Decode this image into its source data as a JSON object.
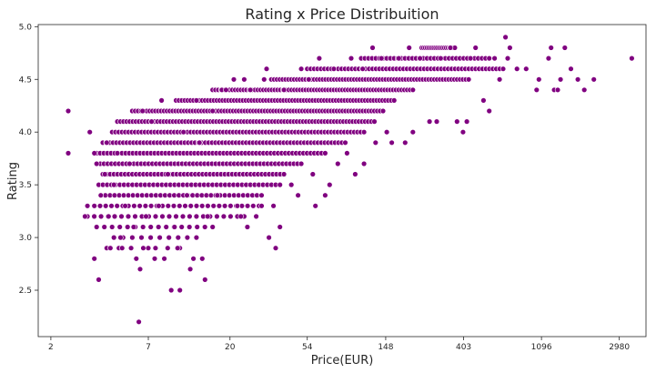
{
  "chart_data": {
    "type": "scatter",
    "title": "Rating x Price Distribuition",
    "xlabel": "Price(EUR)",
    "ylabel": "Rating",
    "x_scale": "log",
    "x_ticks": [
      2,
      7,
      20,
      54,
      148,
      403,
      1096,
      2980
    ],
    "y_ticks": [
      "2.5",
      "3.0",
      "3.5",
      "4.0",
      "4.5",
      "5.0"
    ],
    "xlim": [
      1.7,
      4200
    ],
    "ylim": [
      2.06,
      5.02
    ],
    "grid": false,
    "marker_color": "#800080",
    "series": [
      {
        "points": [
          {
            "x": 2.5,
            "y": 4.2
          },
          {
            "x": 2.5,
            "y": 3.8
          },
          {
            "x": 3.3,
            "y": 4.0
          },
          {
            "x": 3.2,
            "y": 3.3
          },
          {
            "x": 3.1,
            "y": 3.2
          },
          {
            "x": 3.5,
            "y": 3.8
          },
          {
            "x": 3.5,
            "y": 2.8
          },
          {
            "x": 3.7,
            "y": 2.6
          },
          {
            "x": 3.6,
            "y": 3.7
          },
          {
            "x": 3.8,
            "y": 3.4
          },
          {
            "x": 4.0,
            "y": 3.6
          },
          {
            "x": 4.1,
            "y": 3.9
          },
          {
            "x": 4.2,
            "y": 3.2
          },
          {
            "x": 4.3,
            "y": 2.9
          },
          {
            "x": 4.5,
            "y": 3.5
          },
          {
            "x": 4.7,
            "y": 3.8
          },
          {
            "x": 4.9,
            "y": 3.0
          },
          {
            "x": 5.0,
            "y": 2.9
          },
          {
            "x": 5.2,
            "y": 3.3
          },
          {
            "x": 5.5,
            "y": 3.7
          },
          {
            "x": 5.8,
            "y": 3.1
          },
          {
            "x": 6.0,
            "y": 2.8
          },
          {
            "x": 6.2,
            "y": 2.2
          },
          {
            "x": 6.3,
            "y": 2.7
          },
          {
            "x": 6.5,
            "y": 4.2
          },
          {
            "x": 6.8,
            "y": 3.2
          },
          {
            "x": 7.0,
            "y": 2.9
          },
          {
            "x": 7.3,
            "y": 4.1
          },
          {
            "x": 7.6,
            "y": 2.8
          },
          {
            "x": 8.0,
            "y": 3.3
          },
          {
            "x": 8.3,
            "y": 4.3
          },
          {
            "x": 8.6,
            "y": 2.8
          },
          {
            "x": 9.0,
            "y": 3.6
          },
          {
            "x": 9.4,
            "y": 2.5
          },
          {
            "x": 9.8,
            "y": 3.1
          },
          {
            "x": 10.2,
            "y": 2.9
          },
          {
            "x": 10.5,
            "y": 2.5
          },
          {
            "x": 11.0,
            "y": 4.0
          },
          {
            "x": 11.5,
            "y": 3.4
          },
          {
            "x": 12.0,
            "y": 2.7
          },
          {
            "x": 12.5,
            "y": 2.8
          },
          {
            "x": 13.0,
            "y": 4.3
          },
          {
            "x": 13.5,
            "y": 3.9
          },
          {
            "x": 14.0,
            "y": 2.8
          },
          {
            "x": 14.5,
            "y": 2.6
          },
          {
            "x": 15.0,
            "y": 3.2
          },
          {
            "x": 16.0,
            "y": 4.2
          },
          {
            "x": 17.0,
            "y": 3.4
          },
          {
            "x": 18.0,
            "y": 4.4
          },
          {
            "x": 19.0,
            "y": 4.4
          },
          {
            "x": 21.0,
            "y": 4.5
          },
          {
            "x": 22.0,
            "y": 3.3
          },
          {
            "x": 23.0,
            "y": 3.2
          },
          {
            "x": 24.0,
            "y": 4.5
          },
          {
            "x": 25.0,
            "y": 3.1
          },
          {
            "x": 26.0,
            "y": 4.4
          },
          {
            "x": 28.0,
            "y": 3.2
          },
          {
            "x": 30.0,
            "y": 3.3
          },
          {
            "x": 31.0,
            "y": 4.5
          },
          {
            "x": 32.0,
            "y": 4.6
          },
          {
            "x": 33.0,
            "y": 3.0
          },
          {
            "x": 35.0,
            "y": 3.3
          },
          {
            "x": 36.0,
            "y": 2.9
          },
          {
            "x": 38.0,
            "y": 3.1
          },
          {
            "x": 40.0,
            "y": 4.4
          },
          {
            "x": 44.0,
            "y": 3.5
          },
          {
            "x": 48.0,
            "y": 3.4
          },
          {
            "x": 50.0,
            "y": 4.6
          },
          {
            "x": 55.0,
            "y": 4.5
          },
          {
            "x": 58.0,
            "y": 3.6
          },
          {
            "x": 60.0,
            "y": 3.3
          },
          {
            "x": 63.0,
            "y": 4.7
          },
          {
            "x": 68.0,
            "y": 3.4
          },
          {
            "x": 72.0,
            "y": 3.5
          },
          {
            "x": 76.0,
            "y": 4.6
          },
          {
            "x": 80.0,
            "y": 3.7
          },
          {
            "x": 90.0,
            "y": 3.8
          },
          {
            "x": 95.0,
            "y": 4.7
          },
          {
            "x": 100.0,
            "y": 3.6
          },
          {
            "x": 110.0,
            "y": 4.6
          },
          {
            "x": 112.0,
            "y": 3.7
          },
          {
            "x": 125.0,
            "y": 4.8
          },
          {
            "x": 130.0,
            "y": 3.9
          },
          {
            "x": 140.0,
            "y": 4.7
          },
          {
            "x": 150.0,
            "y": 4.0
          },
          {
            "x": 160.0,
            "y": 3.9
          },
          {
            "x": 175.0,
            "y": 4.7
          },
          {
            "x": 190.0,
            "y": 3.9
          },
          {
            "x": 200.0,
            "y": 4.8
          },
          {
            "x": 210.0,
            "y": 4.0
          },
          {
            "x": 230.0,
            "y": 4.7
          },
          {
            "x": 260.0,
            "y": 4.1
          },
          {
            "x": 285.0,
            "y": 4.1
          },
          {
            "x": 300.0,
            "y": 4.7
          },
          {
            "x": 340.0,
            "y": 4.8
          },
          {
            "x": 370.0,
            "y": 4.1
          },
          {
            "x": 400.0,
            "y": 4.0
          },
          {
            "x": 420.0,
            "y": 4.1
          },
          {
            "x": 440.0,
            "y": 4.7
          },
          {
            "x": 470.0,
            "y": 4.8
          },
          {
            "x": 520.0,
            "y": 4.3
          },
          {
            "x": 560.0,
            "y": 4.2
          },
          {
            "x": 600.0,
            "y": 4.7
          },
          {
            "x": 640.0,
            "y": 4.5
          },
          {
            "x": 690.0,
            "y": 4.9
          },
          {
            "x": 710.0,
            "y": 4.7
          },
          {
            "x": 730.0,
            "y": 4.8
          },
          {
            "x": 800.0,
            "y": 4.6
          },
          {
            "x": 900.0,
            "y": 4.6
          },
          {
            "x": 1030.0,
            "y": 4.4
          },
          {
            "x": 1060.0,
            "y": 4.5
          },
          {
            "x": 1200.0,
            "y": 4.7
          },
          {
            "x": 1240.0,
            "y": 4.8
          },
          {
            "x": 1290.0,
            "y": 4.4
          },
          {
            "x": 1350.0,
            "y": 4.4
          },
          {
            "x": 1400.0,
            "y": 4.5
          },
          {
            "x": 1480.0,
            "y": 4.8
          },
          {
            "x": 1600.0,
            "y": 4.6
          },
          {
            "x": 1750.0,
            "y": 4.5
          },
          {
            "x": 1900.0,
            "y": 4.4
          },
          {
            "x": 2150.0,
            "y": 4.5
          },
          {
            "x": 3500.0,
            "y": 4.7
          }
        ]
      }
    ]
  }
}
